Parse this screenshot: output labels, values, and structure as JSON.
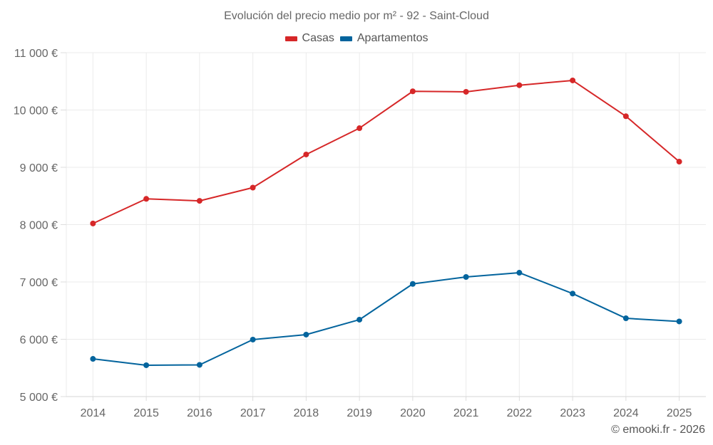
{
  "chart_data": {
    "type": "line",
    "title": "Evolución del precio medio por m² - 92 - Saint-Cloud",
    "xlabel": "",
    "ylabel": "",
    "x": [
      "2014",
      "2015",
      "2016",
      "2017",
      "2018",
      "2019",
      "2020",
      "2021",
      "2022",
      "2023",
      "2024",
      "2025"
    ],
    "ylim": [
      5000,
      11000
    ],
    "yticks": [
      5000,
      6000,
      7000,
      8000,
      9000,
      10000,
      11000
    ],
    "ytick_labels": [
      "5 000 €",
      "6 000 €",
      "7 000 €",
      "8 000 €",
      "9 000 €",
      "10 000 €",
      "11 000 €"
    ],
    "grid": true,
    "legend_position": "top-center",
    "series": [
      {
        "name": "Casas",
        "color": "#d62728",
        "values": [
          8020,
          8450,
          8415,
          8646,
          9224,
          9683,
          10326,
          10317,
          10432,
          10516,
          9891,
          9099
        ]
      },
      {
        "name": "Apartamentos",
        "color": "#03649d",
        "values": [
          5658,
          5547,
          5553,
          5994,
          6081,
          6342,
          6966,
          7087,
          7161,
          6797,
          6366,
          6311
        ]
      }
    ]
  },
  "legend": {
    "items": [
      {
        "label": "Casas",
        "color": "#d62728"
      },
      {
        "label": "Apartamentos",
        "color": "#03649d"
      }
    ]
  },
  "credit": "© emooki.fr - 2026"
}
